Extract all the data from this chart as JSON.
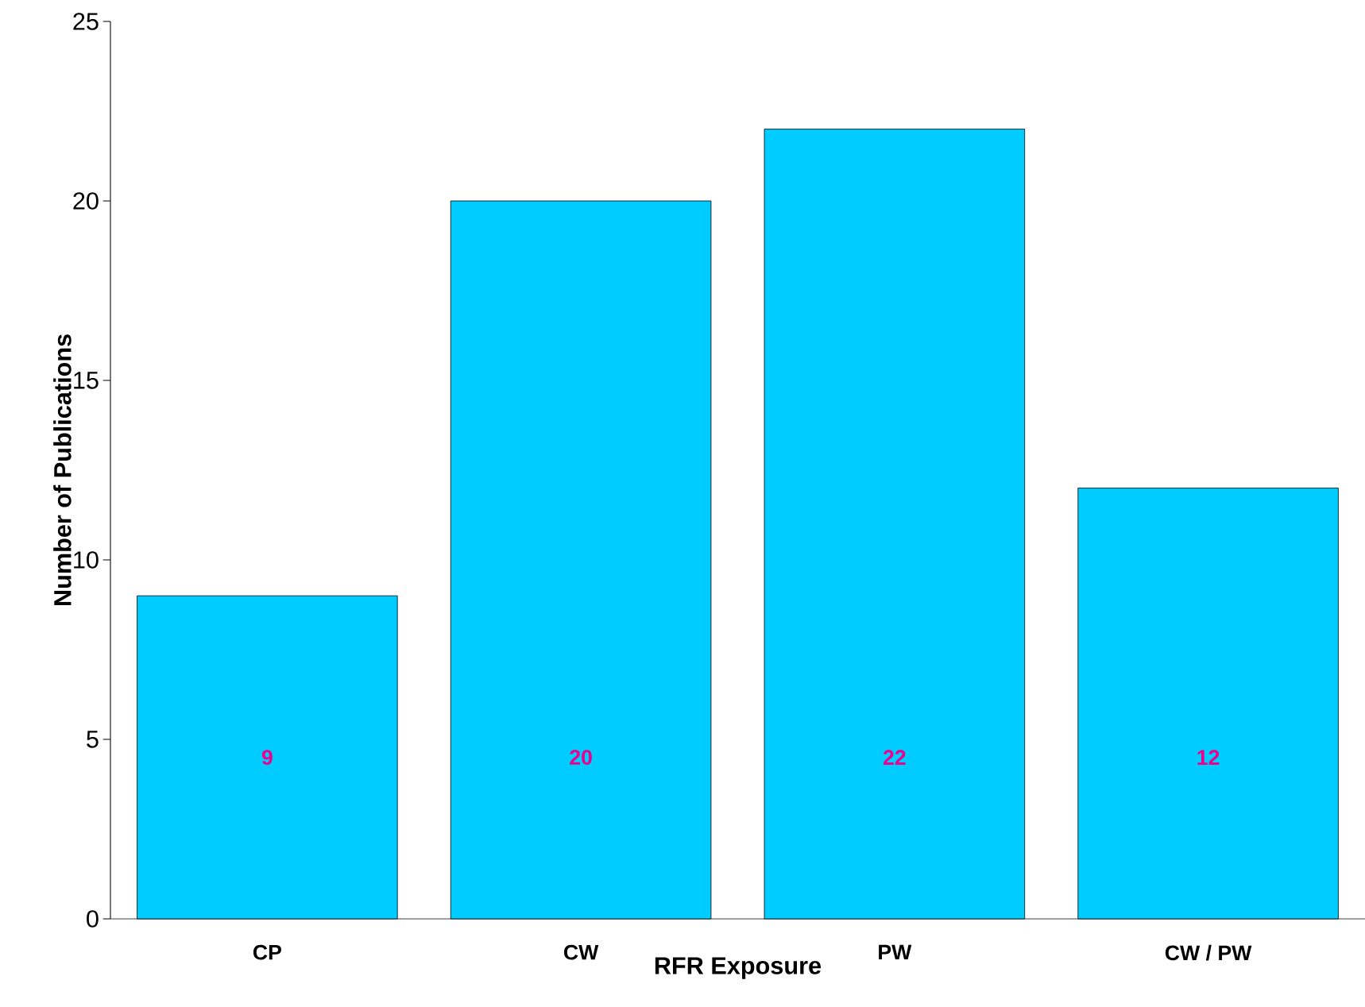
{
  "chart_data": {
    "type": "bar",
    "xlabel": "RFR  Exposure",
    "ylabel": "Number  of  Publications",
    "categories": [
      "CP",
      "CW",
      "PW",
      "CW / PW"
    ],
    "values": [
      9,
      20,
      22,
      12
    ],
    "color": "#00ccff",
    "ylim": [
      0,
      25
    ],
    "yticks": [
      0,
      5,
      10,
      15,
      20,
      25
    ],
    "data_labels": true
  }
}
